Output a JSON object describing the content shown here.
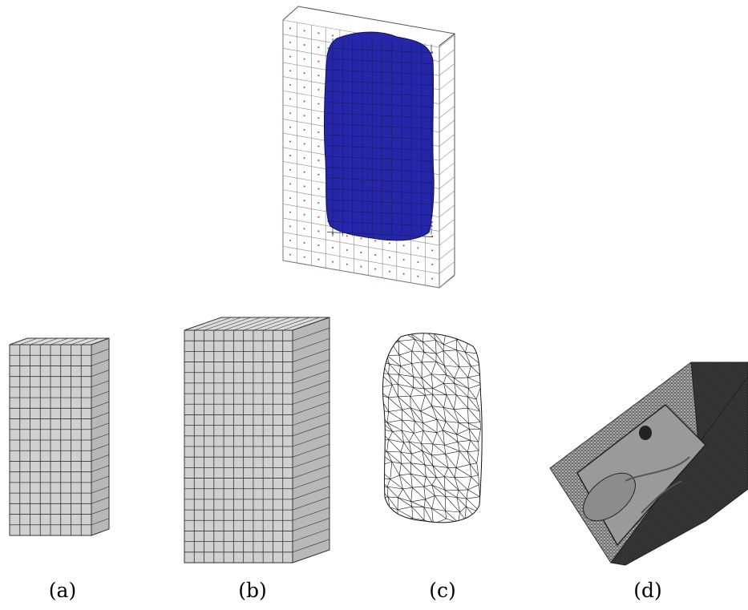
{
  "captions": {
    "a": "(a)",
    "b": "(b)",
    "c": "(c)",
    "d": "(d)"
  },
  "colors": {
    "background": "#ffffff",
    "hex_face": "#d0d0d0",
    "hex_top": "#dcdcdc",
    "hex_side": "#b8b8b8",
    "grid_line": "#333333",
    "blob_fill": "#2626a8",
    "blob_edge": "#101060",
    "lattice_line": "#8a8a8a",
    "lattice_point": "#e03030",
    "tet_mesh_line": "#111111",
    "dark_mesh": "#3a3a3a"
  },
  "panels": {
    "top": {
      "name": "embedded-object-in-grid"
    },
    "a": {
      "name": "hex-mesh-a",
      "rows": 18,
      "cols": 8
    },
    "b": {
      "name": "hex-mesh-b",
      "rows": 22,
      "cols": 11
    },
    "c": {
      "name": "tet-surface-mesh"
    },
    "d": {
      "name": "mold-cavity-mesh"
    }
  }
}
